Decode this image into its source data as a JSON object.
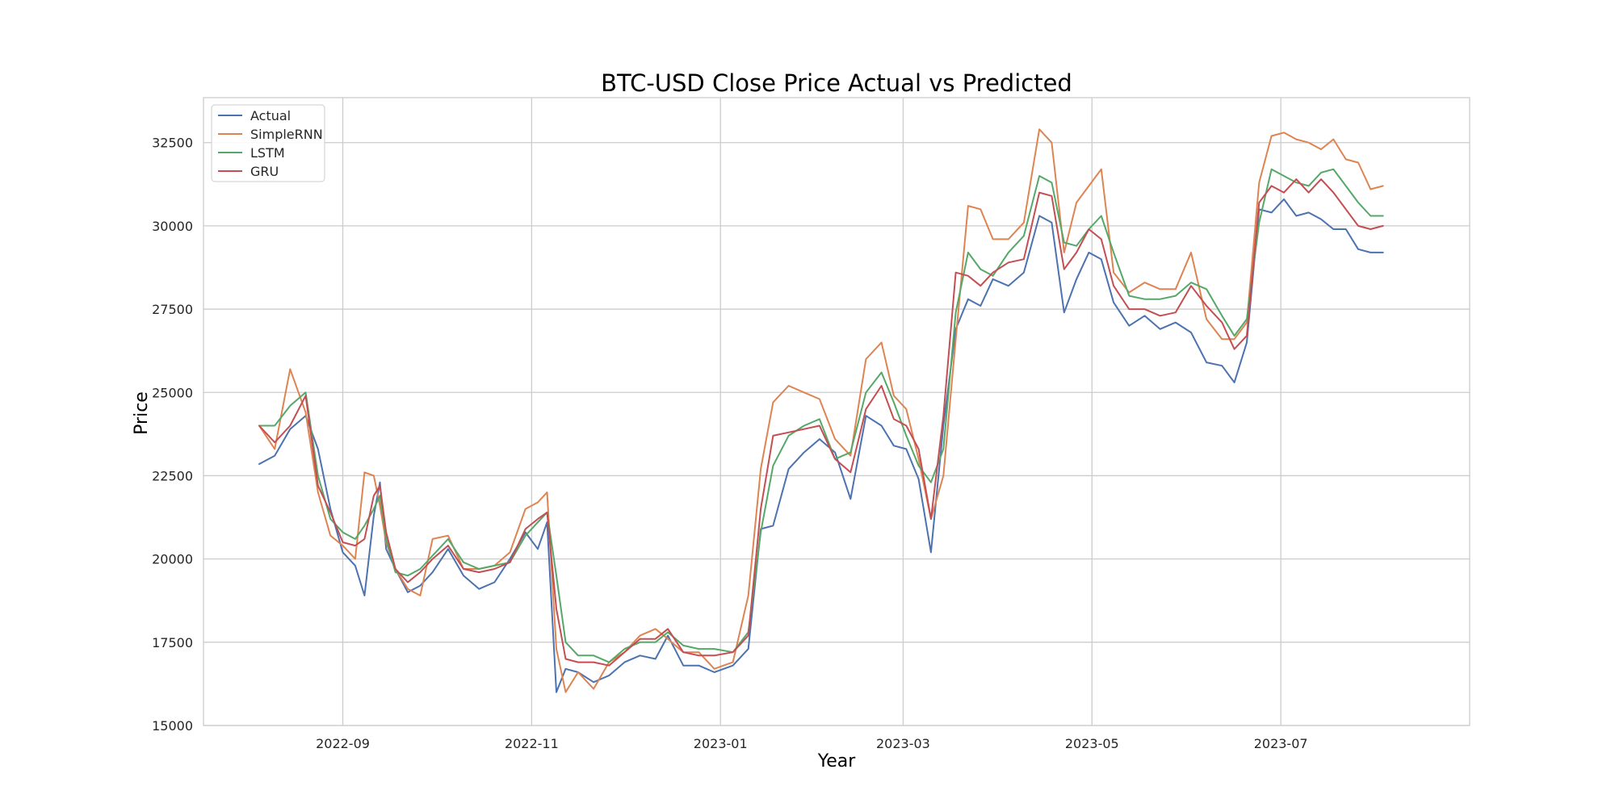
{
  "chart_data": {
    "type": "line",
    "title": "BTC-USD Close Price Actual vs Predicted",
    "xlabel": "Year",
    "ylabel": "Price",
    "xlim": [
      "2022-07-18",
      "2023-08-31"
    ],
    "ylim": [
      15000,
      33850
    ],
    "grid": true,
    "legend_position": "top-left",
    "x_ticks": [
      "2022-09-01",
      "2022-11-01",
      "2023-01-01",
      "2023-03-01",
      "2023-05-01",
      "2023-07-01"
    ],
    "x_tick_labels": [
      "2022-09",
      "2022-11",
      "2023-01",
      "2023-03",
      "2023-05",
      "2023-07"
    ],
    "y_ticks": [
      15000,
      17500,
      20000,
      22500,
      25000,
      27500,
      30000,
      32500
    ],
    "y_tick_labels": [
      "15000",
      "17500",
      "20000",
      "22500",
      "25000",
      "27500",
      "30000",
      "32500"
    ],
    "x": [
      "2022-08-05",
      "2022-08-10",
      "2022-08-15",
      "2022-08-20",
      "2022-08-24",
      "2022-08-28",
      "2022-09-01",
      "2022-09-05",
      "2022-09-08",
      "2022-09-11",
      "2022-09-13",
      "2022-09-15",
      "2022-09-18",
      "2022-09-22",
      "2022-09-26",
      "2022-09-30",
      "2022-10-05",
      "2022-10-10",
      "2022-10-15",
      "2022-10-20",
      "2022-10-25",
      "2022-10-30",
      "2022-11-03",
      "2022-11-06",
      "2022-11-09",
      "2022-11-12",
      "2022-11-16",
      "2022-11-21",
      "2022-11-26",
      "2022-12-01",
      "2022-12-06",
      "2022-12-11",
      "2022-12-15",
      "2022-12-20",
      "2022-12-25",
      "2022-12-30",
      "2023-01-05",
      "2023-01-10",
      "2023-01-14",
      "2023-01-18",
      "2023-01-23",
      "2023-01-28",
      "2023-02-02",
      "2023-02-07",
      "2023-02-12",
      "2023-02-17",
      "2023-02-22",
      "2023-02-26",
      "2023-03-02",
      "2023-03-06",
      "2023-03-10",
      "2023-03-14",
      "2023-03-18",
      "2023-03-22",
      "2023-03-26",
      "2023-03-30",
      "2023-04-04",
      "2023-04-09",
      "2023-04-14",
      "2023-04-18",
      "2023-04-22",
      "2023-04-26",
      "2023-04-30",
      "2023-05-04",
      "2023-05-08",
      "2023-05-13",
      "2023-05-18",
      "2023-05-23",
      "2023-05-28",
      "2023-06-02",
      "2023-06-07",
      "2023-06-12",
      "2023-06-16",
      "2023-06-20",
      "2023-06-24",
      "2023-06-28",
      "2023-07-02",
      "2023-07-06",
      "2023-07-10",
      "2023-07-14",
      "2023-07-18",
      "2023-07-22",
      "2023-07-26",
      "2023-07-30",
      "2023-08-03"
    ],
    "series": [
      {
        "name": "Actual",
        "color": "#4c72b0",
        "values": [
          22850,
          23100,
          23900,
          24300,
          23300,
          21500,
          20200,
          19800,
          18900,
          21300,
          22300,
          20300,
          19700,
          19000,
          19200,
          19600,
          20300,
          19500,
          19100,
          19300,
          20000,
          20800,
          20300,
          21100,
          16000,
          16700,
          16600,
          16300,
          16500,
          16900,
          17100,
          17000,
          17700,
          16800,
          16800,
          16600,
          16800,
          17300,
          20900,
          21000,
          22700,
          23200,
          23600,
          23200,
          21800,
          24300,
          24000,
          23400,
          23300,
          22400,
          20200,
          24000,
          26900,
          27800,
          27600,
          28400,
          28200,
          28600,
          30300,
          30100,
          27400,
          28400,
          29200,
          29000,
          27700,
          27000,
          27300,
          26900,
          27100,
          26800,
          25900,
          25800,
          25300,
          26500,
          30500,
          30400,
          30800,
          30300,
          30400,
          30200,
          29900,
          29900,
          29300,
          29200,
          29200
        ]
      },
      {
        "name": "SimpleRNN",
        "color": "#dd8452",
        "values": [
          24000,
          23300,
          25700,
          24400,
          22000,
          20700,
          20400,
          20000,
          22600,
          22500,
          21600,
          20500,
          19700,
          19100,
          18900,
          20600,
          20700,
          19700,
          19700,
          19800,
          20200,
          21500,
          21700,
          22000,
          17300,
          16000,
          16600,
          16100,
          16900,
          17200,
          17700,
          17900,
          17600,
          17200,
          17200,
          16700,
          16900,
          18900,
          22700,
          24700,
          25200,
          25000,
          24800,
          23600,
          23100,
          26000,
          26500,
          24900,
          24500,
          23000,
          21200,
          22500,
          26600,
          30600,
          30500,
          29600,
          29600,
          30100,
          32900,
          32500,
          29200,
          30700,
          31200,
          31700,
          28600,
          28000,
          28300,
          28100,
          28100,
          29200,
          27200,
          26600,
          26600,
          27100,
          31300,
          32700,
          32800,
          32600,
          32500,
          32300,
          32600,
          32000,
          31900,
          31100,
          31200
        ]
      },
      {
        "name": "LSTM",
        "color": "#55a868",
        "values": [
          24000,
          24000,
          24600,
          25000,
          22500,
          21200,
          20800,
          20600,
          21000,
          21500,
          21900,
          20600,
          19600,
          19500,
          19700,
          20100,
          20600,
          19900,
          19700,
          19800,
          19900,
          20700,
          21100,
          21400,
          19500,
          17500,
          17100,
          17100,
          16900,
          17300,
          17500,
          17500,
          17800,
          17400,
          17300,
          17300,
          17200,
          17800,
          20800,
          22800,
          23700,
          24000,
          24200,
          23000,
          23200,
          25000,
          25600,
          24700,
          23700,
          22800,
          22300,
          23300,
          27400,
          29200,
          28700,
          28500,
          29200,
          29700,
          31500,
          31300,
          29500,
          29400,
          29900,
          30300,
          29200,
          27900,
          27800,
          27800,
          27900,
          28300,
          28100,
          27300,
          26700,
          27200,
          30100,
          31700,
          31500,
          31300,
          31200,
          31600,
          31700,
          31200,
          30700,
          30300,
          30300
        ]
      },
      {
        "name": "GRU",
        "color": "#c44e52",
        "values": [
          24000,
          23500,
          24000,
          24900,
          22200,
          21400,
          20500,
          20400,
          20600,
          21900,
          22200,
          20800,
          19700,
          19300,
          19600,
          20000,
          20400,
          19700,
          19600,
          19700,
          19900,
          20900,
          21200,
          21400,
          18500,
          17000,
          16900,
          16900,
          16800,
          17200,
          17600,
          17600,
          17900,
          17200,
          17100,
          17100,
          17200,
          17700,
          21500,
          23700,
          23800,
          23900,
          24000,
          23000,
          22600,
          24500,
          25200,
          24200,
          24000,
          23300,
          21200,
          24300,
          28600,
          28500,
          28200,
          28600,
          28900,
          29000,
          31000,
          30900,
          28700,
          29200,
          29900,
          29600,
          28200,
          27500,
          27500,
          27300,
          27400,
          28200,
          27600,
          27100,
          26300,
          26700,
          30700,
          31200,
          31000,
          31400,
          31000,
          31400,
          31000,
          30500,
          30000,
          29900,
          30000
        ]
      }
    ]
  }
}
